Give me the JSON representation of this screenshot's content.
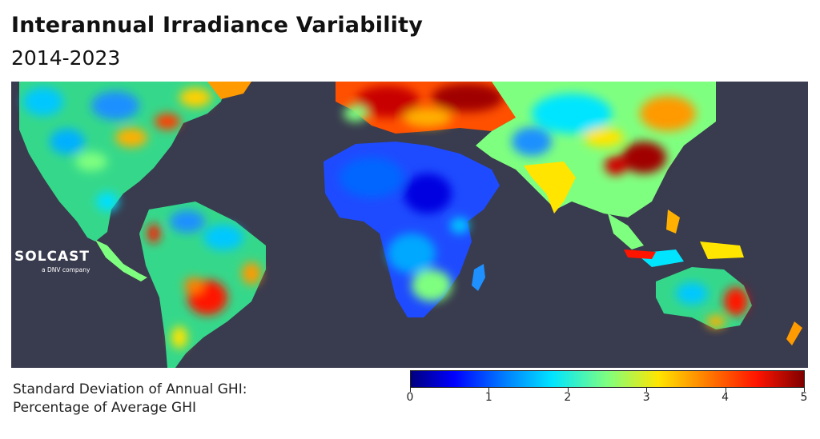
{
  "header": {
    "title": "Interannual Irradiance Variability",
    "subtitle": "2014-2023"
  },
  "logo": {
    "wordmark": "SOLCAST",
    "tagline": "a DNV company"
  },
  "legend": {
    "label_line1": "Standard Deviation of Annual GHI:",
    "label_line2": "Percentage of Average GHI",
    "ticks": [
      "0",
      "1",
      "2",
      "3",
      "4",
      "5"
    ],
    "range": [
      0,
      5
    ],
    "colormap": "jet"
  },
  "colors": {
    "ocean": "#393b4e",
    "low": "#0000ff",
    "mid": "#7fff7f",
    "high": "#ff1400"
  }
}
